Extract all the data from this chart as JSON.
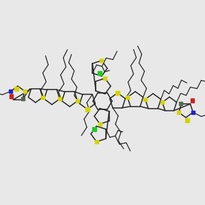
{
  "bg_color": "#e8e8e8",
  "bond_color": "#222222",
  "S_color": "#d4d400",
  "N_color": "#2222cc",
  "O_color": "#cc2222",
  "Cl_color": "#22cc22",
  "C_gray": "#556655",
  "figsize": [
    3.0,
    3.0
  ],
  "dpi": 100,
  "lw_ring": 1.1,
  "lw_chain": 0.9,
  "sq_s": 5.5
}
